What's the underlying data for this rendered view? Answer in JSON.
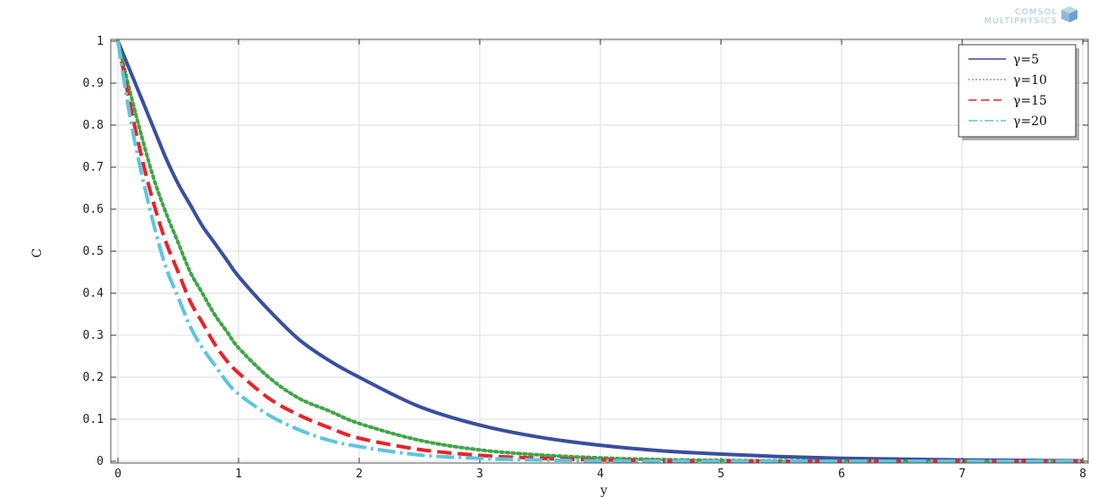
{
  "brand": {
    "line1": "COMSOL",
    "line2": "MULTIPHYSICS",
    "icon": "comsol-cube-icon",
    "color": "#9fc3df"
  },
  "chart_data": {
    "type": "line",
    "xlabel": "y",
    "ylabel": "C",
    "xlim": [
      0,
      8
    ],
    "ylim": [
      0,
      1
    ],
    "xticks": [
      0,
      1,
      2,
      3,
      4,
      5,
      6,
      7,
      8
    ],
    "yticks": [
      0,
      0.1,
      0.2,
      0.3,
      0.4,
      0.5,
      0.6,
      0.7,
      0.8,
      0.9,
      1
    ],
    "grid": true,
    "legend_position": "top-right",
    "x": [
      0,
      0.1,
      0.2,
      0.3,
      0.4,
      0.5,
      0.6,
      0.7,
      0.8,
      0.9,
      1.0,
      1.25,
      1.5,
      1.75,
      2.0,
      2.5,
      3.0,
      3.5,
      4.0,
      4.5,
      5.0,
      5.5,
      6.0,
      6.5,
      7.0,
      7.5,
      8.0
    ],
    "series": [
      {
        "name": "γ=5",
        "color": "#3a4f9f",
        "dash": "solid",
        "values": [
          1.0,
          0.93,
          0.86,
          0.79,
          0.72,
          0.66,
          0.61,
          0.56,
          0.52,
          0.48,
          0.44,
          0.36,
          0.29,
          0.24,
          0.2,
          0.13,
          0.086,
          0.057,
          0.038,
          0.025,
          0.017,
          0.011,
          0.007,
          0.005,
          0.003,
          0.002,
          0.001
        ]
      },
      {
        "name": "γ=10",
        "color": "#3ea648",
        "dash": "dotted",
        "values": [
          1.0,
          0.88,
          0.77,
          0.67,
          0.59,
          0.52,
          0.45,
          0.4,
          0.35,
          0.31,
          0.27,
          0.2,
          0.15,
          0.12,
          0.09,
          0.05,
          0.027,
          0.015,
          0.008,
          0.004,
          0.002,
          0.001,
          0.0005,
          0.0,
          0.0,
          0.0,
          0.0
        ]
      },
      {
        "name": "γ=15",
        "color": "#e8232a",
        "dash": "dashed",
        "values": [
          1.0,
          0.85,
          0.72,
          0.61,
          0.52,
          0.45,
          0.38,
          0.33,
          0.28,
          0.24,
          0.21,
          0.15,
          0.11,
          0.08,
          0.055,
          0.028,
          0.014,
          0.007,
          0.003,
          0.001,
          0.0005,
          0.0,
          0.0,
          0.0,
          0.0,
          0.0,
          0.0
        ]
      },
      {
        "name": "γ=20",
        "color": "#5ec5dc",
        "dash": "dash-dot",
        "values": [
          1.0,
          0.82,
          0.68,
          0.56,
          0.46,
          0.39,
          0.32,
          0.27,
          0.23,
          0.19,
          0.16,
          0.11,
          0.075,
          0.05,
          0.035,
          0.015,
          0.007,
          0.003,
          0.001,
          0.0005,
          0.0,
          0.0,
          0.0,
          0.0,
          0.0,
          0.0,
          0.0
        ]
      }
    ]
  }
}
